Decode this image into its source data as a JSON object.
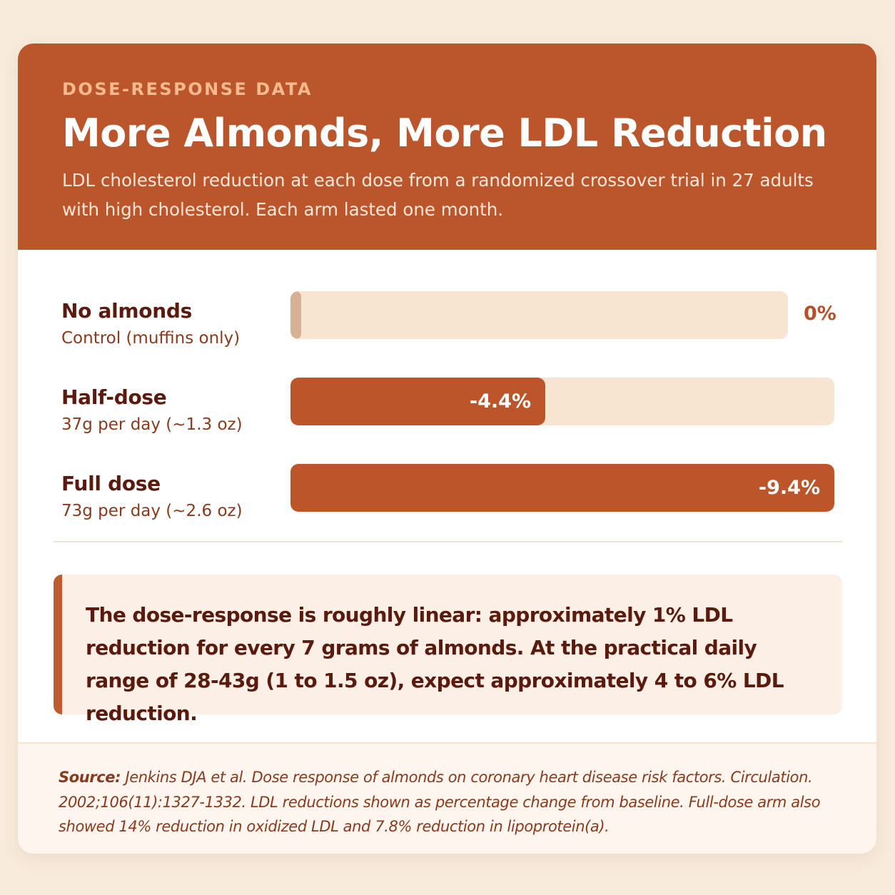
{
  "header": {
    "eyebrow": "DOSE-RESPONSE DATA",
    "title": "More Almonds, More LDL Reduction",
    "subtitle": "LDL cholesterol reduction at each dose from a randomized crossover trial in 27 adults with high cholesterol. Each arm lasted one month."
  },
  "chart_data": {
    "type": "bar",
    "orientation": "horizontal",
    "categories": [
      "No almonds",
      "Half-dose",
      "Full dose"
    ],
    "sublabels": [
      "Control (muffins only)",
      "37g per day (~1.3 oz)",
      "73g per day (~2.6 oz)"
    ],
    "values": [
      0,
      -4.4,
      -9.4
    ],
    "value_labels": [
      "0%",
      "-4.4%",
      "-9.4%"
    ],
    "unit": "%",
    "xlim": [
      0,
      -9.4
    ],
    "colors": {
      "bar": "#bd552b",
      "track": "#f7e5d2",
      "zero_marker": "#d6b195"
    }
  },
  "callout": {
    "text": "The dose-response is roughly linear: approximately 1% LDL reduction for every 7 grams of almonds. At the practical daily range of 28-43g (1 to 1.5 oz), expect approximately 4 to 6% LDL reduction."
  },
  "footer": {
    "source_label": "Source:",
    "source_text": "Jenkins DJA et al. Dose response of almonds on coronary heart disease risk factors. Circulation. 2002;106(11):1327-1332. LDL reductions shown as percentage change from baseline. Full-dose arm also showed 14% reduction in oxidized LDL and 7.8% reduction in lipoprotein(a)."
  },
  "colors": {
    "header_bg": "#bb552b",
    "accent": "#c25a30",
    "page_bg": "#f8ebdc"
  }
}
